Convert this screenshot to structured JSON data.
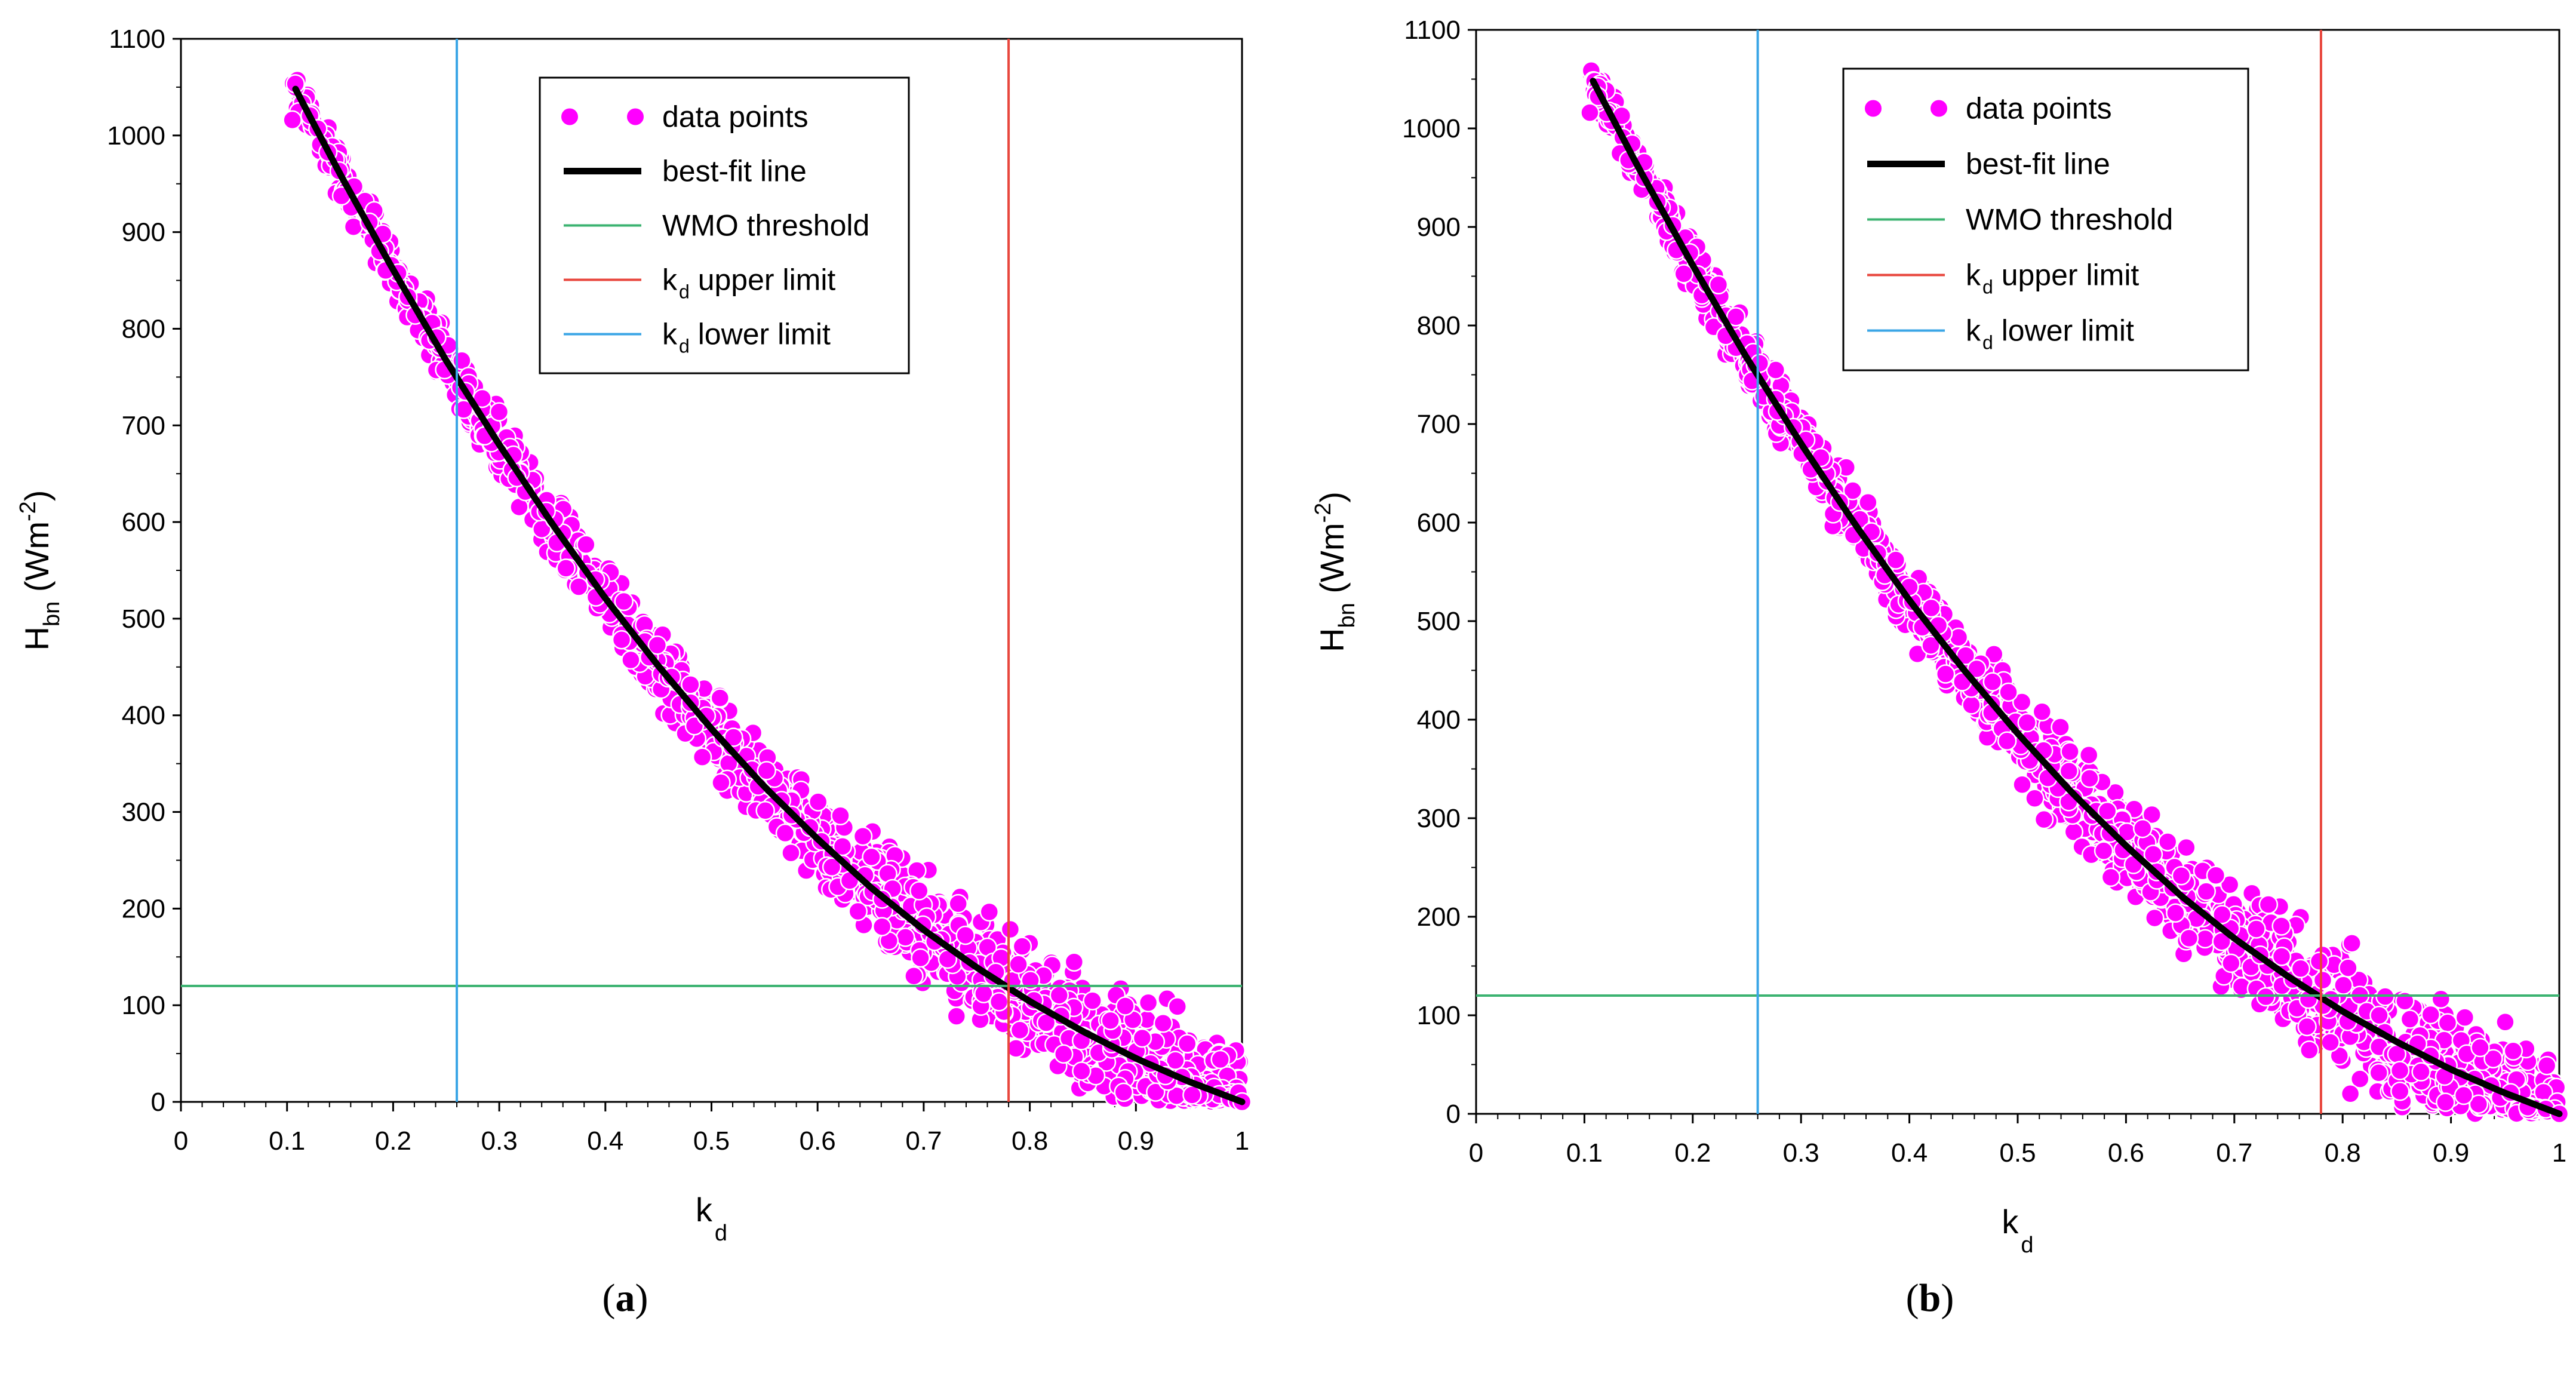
{
  "figure": {
    "panel_labels": [
      "(",
      "a",
      ")",
      "(",
      "b",
      ")"
    ]
  },
  "chart_data": [
    {
      "type": "scatter",
      "panel": "a",
      "xlabel": "k",
      "xlabel_sub": "d",
      "ylabel": "H",
      "ylabel_sub": "bn",
      "ylabel_unit_open": " (Wm",
      "ylabel_unit_sup": "-2",
      "ylabel_unit_close": ")",
      "xlim": [
        0,
        1
      ],
      "ylim": [
        0,
        1100
      ],
      "xticks": [
        "0",
        "0.1",
        "0.2",
        "0.3",
        "0.4",
        "0.5",
        "0.6",
        "0.7",
        "0.8",
        "0.9",
        "1"
      ],
      "xtick_values": [
        0,
        0.1,
        0.2,
        0.3,
        0.4,
        0.5,
        0.6,
        0.7,
        0.8,
        0.9,
        1
      ],
      "yticks": [
        "0",
        "100",
        "200",
        "300",
        "400",
        "500",
        "600",
        "700",
        "800",
        "900",
        "1000",
        "1100"
      ],
      "ytick_values": [
        0,
        100,
        200,
        300,
        400,
        500,
        600,
        700,
        800,
        900,
        1000,
        1100
      ],
      "legend": {
        "location": "top-right",
        "entries": [
          {
            "label": "data points",
            "sub": "",
            "rest": ""
          },
          {
            "label": "best-fit line",
            "sub": "",
            "rest": ""
          },
          {
            "label": "WMO threshold",
            "sub": "",
            "rest": ""
          },
          {
            "label": "k",
            "sub": "d",
            "rest": " upper limit"
          },
          {
            "label": "k",
            "sub": "d",
            "rest": " lower limit"
          }
        ]
      },
      "reference_lines": {
        "wmo_threshold_y": 120,
        "kd_upper_x": 0.78,
        "kd_lower_x": 0.26
      },
      "best_fit": {
        "x": [
          0.108,
          0.15,
          0.2,
          0.25,
          0.3,
          0.35,
          0.4,
          0.45,
          0.5,
          0.55,
          0.6,
          0.65,
          0.7,
          0.75,
          0.8,
          0.85,
          0.9,
          0.95,
          1.0
        ],
        "y": [
          1048,
          960,
          861,
          767,
          680,
          598,
          521,
          451,
          386,
          326,
          272,
          222,
          178,
          139,
          104,
          73,
          45,
          21,
          0
        ]
      },
      "data_points": {
        "x_range": [
          0.105,
          1.0
        ],
        "scatter_band": 30,
        "count": 1500
      }
    },
    {
      "type": "scatter",
      "panel": "b",
      "xlabel": "k",
      "xlabel_sub": "d",
      "ylabel": "H",
      "ylabel_sub": "bn",
      "ylabel_unit_open": " (Wm",
      "ylabel_unit_sup": "-2",
      "ylabel_unit_close": ")",
      "xlim": [
        0,
        1
      ],
      "ylim": [
        0,
        1100
      ],
      "xticks": [
        "0",
        "0.1",
        "0.2",
        "0.3",
        "0.4",
        "0.5",
        "0.6",
        "0.7",
        "0.8",
        "0.9",
        "1"
      ],
      "xtick_values": [
        0,
        0.1,
        0.2,
        0.3,
        0.4,
        0.5,
        0.6,
        0.7,
        0.8,
        0.9,
        1
      ],
      "yticks": [
        "0",
        "100",
        "200",
        "300",
        "400",
        "500",
        "600",
        "700",
        "800",
        "900",
        "1000",
        "1100"
      ],
      "ytick_values": [
        0,
        100,
        200,
        300,
        400,
        500,
        600,
        700,
        800,
        900,
        1000,
        1100
      ],
      "legend": {
        "location": "top-right",
        "entries": [
          {
            "label": "data points",
            "sub": "",
            "rest": ""
          },
          {
            "label": "best-fit line",
            "sub": "",
            "rest": ""
          },
          {
            "label": "WMO threshold",
            "sub": "",
            "rest": ""
          },
          {
            "label": "k",
            "sub": "d",
            "rest": " upper limit"
          },
          {
            "label": "k",
            "sub": "d",
            "rest": " lower limit"
          }
        ]
      },
      "reference_lines": {
        "wmo_threshold_y": 120,
        "kd_upper_x": 0.78,
        "kd_lower_x": 0.26
      },
      "best_fit": {
        "x": [
          0.108,
          0.15,
          0.2,
          0.25,
          0.3,
          0.35,
          0.4,
          0.45,
          0.5,
          0.55,
          0.6,
          0.65,
          0.7,
          0.75,
          0.8,
          0.85,
          0.9,
          0.95,
          1.0
        ],
        "y": [
          1048,
          960,
          861,
          767,
          680,
          598,
          521,
          451,
          386,
          326,
          272,
          222,
          178,
          139,
          104,
          73,
          45,
          21,
          0
        ]
      },
      "data_points": {
        "x_range": [
          0.105,
          1.0
        ],
        "scatter_band": 30,
        "count": 1500
      }
    }
  ],
  "colors": {
    "data_points": "#ff00ff",
    "data_edge": "#ffffff",
    "best_fit": "#000000",
    "wmo_threshold": "#3cb371",
    "kd_upper": "#e8463c",
    "kd_lower": "#3ba6e6",
    "axis": "#000000"
  }
}
